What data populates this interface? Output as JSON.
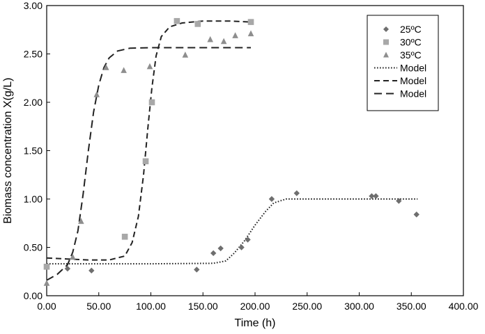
{
  "chart_data": {
    "type": "scatter",
    "title": "",
    "xlabel": "Time (h)",
    "ylabel": "Biomass concentration X(g/L)",
    "xlim": [
      0,
      400
    ],
    "ylim": [
      0,
      3
    ],
    "grid": false,
    "legend_position": "top-right",
    "x_ticks": [
      "0.00",
      "50.00",
      "100.00",
      "150.00",
      "200.00",
      "250.00",
      "300.00",
      "350.00",
      "400.00"
    ],
    "y_ticks": [
      "0.00",
      "0.50",
      "1.00",
      "1.50",
      "2.00",
      "2.50",
      "3.00"
    ],
    "legend": [
      "25ºC",
      "30ºC",
      "35ºC",
      "Model",
      "Model",
      "Model"
    ],
    "series": [
      {
        "name": "25ºC",
        "kind": "points",
        "marker": "diamond",
        "color": "#6e6e6e",
        "points": [
          [
            20,
            0.28
          ],
          [
            43,
            0.26
          ],
          [
            144,
            0.27
          ],
          [
            160,
            0.44
          ],
          [
            167,
            0.49
          ],
          [
            187,
            0.5
          ],
          [
            193,
            0.58
          ],
          [
            216,
            1.0
          ],
          [
            240,
            1.06
          ],
          [
            312,
            1.03
          ],
          [
            316,
            1.03
          ],
          [
            338,
            0.98
          ],
          [
            355,
            0.84
          ]
        ]
      },
      {
        "name": "30ºC",
        "kind": "points",
        "marker": "square",
        "color": "#a8a8a8",
        "points": [
          [
            0,
            0.3
          ],
          [
            75,
            0.61
          ],
          [
            95,
            1.39
          ],
          [
            101,
            2.0
          ],
          [
            125,
            2.84
          ],
          [
            145,
            2.81
          ],
          [
            196,
            2.83
          ]
        ]
      },
      {
        "name": "35ºC",
        "kind": "points",
        "marker": "triangle",
        "color": "#8e8e8e",
        "points": [
          [
            0,
            0.13
          ],
          [
            25,
            0.4
          ],
          [
            33,
            0.77
          ],
          [
            48,
            2.08
          ],
          [
            57,
            2.36
          ],
          [
            74,
            2.33
          ],
          [
            99,
            2.37
          ],
          [
            133,
            2.49
          ],
          [
            157,
            2.65
          ],
          [
            170,
            2.63
          ],
          [
            181,
            2.69
          ],
          [
            196,
            2.71
          ]
        ]
      },
      {
        "name": "Model",
        "kind": "line",
        "dash": "dotted",
        "color": "#222222",
        "points": [
          [
            0,
            0.33
          ],
          [
            100,
            0.33
          ],
          [
            160,
            0.335
          ],
          [
            172,
            0.36
          ],
          [
            180,
            0.44
          ],
          [
            190,
            0.57
          ],
          [
            200,
            0.73
          ],
          [
            210,
            0.87
          ],
          [
            218,
            0.96
          ],
          [
            230,
            1.0
          ],
          [
            260,
            1.0
          ],
          [
            356,
            1.0
          ]
        ]
      },
      {
        "name": "Model",
        "kind": "line",
        "dash": "dashed",
        "color": "#222222",
        "points": [
          [
            0,
            0.39
          ],
          [
            20,
            0.38
          ],
          [
            40,
            0.37
          ],
          [
            60,
            0.37
          ],
          [
            75,
            0.41
          ],
          [
            82,
            0.55
          ],
          [
            88,
            0.82
          ],
          [
            93,
            1.25
          ],
          [
            97,
            1.72
          ],
          [
            101,
            2.15
          ],
          [
            105,
            2.48
          ],
          [
            110,
            2.68
          ],
          [
            118,
            2.78
          ],
          [
            130,
            2.82
          ],
          [
            150,
            2.84
          ],
          [
            175,
            2.84
          ],
          [
            196,
            2.83
          ]
        ]
      },
      {
        "name": "Model",
        "kind": "line",
        "dash": "long-dash",
        "color": "#222222",
        "points": [
          [
            0,
            0.16
          ],
          [
            10,
            0.22
          ],
          [
            20,
            0.32
          ],
          [
            25,
            0.45
          ],
          [
            30,
            0.67
          ],
          [
            35,
            1.05
          ],
          [
            40,
            1.5
          ],
          [
            45,
            1.9
          ],
          [
            50,
            2.18
          ],
          [
            55,
            2.36
          ],
          [
            60,
            2.46
          ],
          [
            68,
            2.53
          ],
          [
            80,
            2.56
          ],
          [
            100,
            2.565
          ],
          [
            150,
            2.565
          ],
          [
            196,
            2.565
          ]
        ]
      }
    ]
  }
}
